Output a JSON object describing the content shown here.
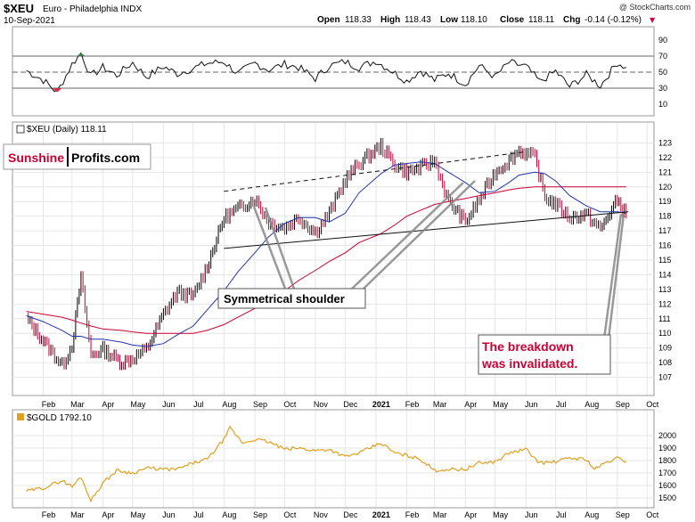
{
  "header": {
    "symbol": "$XEU",
    "name": "Euro - Philadelphia  INDX",
    "date": "10-Sep-2021",
    "credit": "@ StockCharts.com",
    "open_label": "Open",
    "open": "118.33",
    "high_label": "High",
    "high": "118.43",
    "low_label": "Low",
    "low": "118.10",
    "close_label": "Close",
    "close": "118.11",
    "chg_label": "Chg",
    "chg": "-0.14 (-0.12%)",
    "chg_arrow": "▼"
  },
  "logo": {
    "part1": "Sunshine",
    "part2": "Profits.com"
  },
  "annotations": {
    "shoulder": "Symmetrical shoulder",
    "breakdown_line1": "The breakdown",
    "breakdown_line2": "was invalidated."
  },
  "colors": {
    "price_up": "#000000",
    "price_down": "#cc0033",
    "ma_short": "#2233aa",
    "ma_long": "#cc0033",
    "gold_line": "#e0a020",
    "rsi_overbought_fill": "#3a7a3a",
    "rsi_oversold_fill": "#cc3344",
    "annotation_red": "#cc0033",
    "grid": "#e6e6e6"
  },
  "chart_data": [
    {
      "type": "line",
      "name": "rsi",
      "title": "",
      "ylim": [
        0,
        100
      ],
      "y_ticks": [
        "90",
        "70",
        "50",
        "30",
        "10"
      ],
      "reference_lines": [
        70,
        50,
        30
      ],
      "x": [
        "2020-01-15",
        "2020-02-01",
        "2020-02-15",
        "2020-03-01",
        "2020-03-10",
        "2020-03-20",
        "2020-04-01",
        "2020-04-15",
        "2020-05-01",
        "2020-05-15",
        "2020-06-01",
        "2020-06-15",
        "2020-07-01",
        "2020-07-15",
        "2020-08-01",
        "2020-08-15",
        "2020-09-01",
        "2020-09-15",
        "2020-10-01",
        "2020-10-15",
        "2020-11-01",
        "2020-11-15",
        "2020-12-01",
        "2020-12-15",
        "2021-01-01",
        "2021-01-15",
        "2021-02-01",
        "2021-02-15",
        "2021-03-01",
        "2021-03-15",
        "2021-04-01",
        "2021-04-15",
        "2021-05-01",
        "2021-05-15",
        "2021-06-01",
        "2021-06-15",
        "2021-07-01",
        "2021-07-15",
        "2021-08-01",
        "2021-08-15",
        "2021-09-01",
        "2021-09-10"
      ],
      "values": [
        52,
        40,
        25,
        60,
        74,
        45,
        56,
        46,
        62,
        44,
        57,
        48,
        55,
        61,
        63,
        48,
        61,
        53,
        60,
        56,
        42,
        58,
        63,
        56,
        64,
        53,
        39,
        52,
        40,
        49,
        35,
        58,
        44,
        62,
        57,
        38,
        51,
        32,
        47,
        33,
        62,
        56
      ]
    },
    {
      "type": "line",
      "name": "$XEU",
      "title": "$XEU (Daily) 118.11",
      "ylim": [
        106,
        124
      ],
      "y_ticks": [
        "123",
        "122",
        "121",
        "120",
        "119",
        "118",
        "117",
        "116",
        "115",
        "114",
        "113",
        "112",
        "111",
        "110",
        "109",
        "108",
        "107"
      ],
      "x_ticks": [
        "Feb",
        "Mar",
        "Apr",
        "May",
        "Jun",
        "Jul",
        "Aug",
        "Sep",
        "Oct",
        "Nov",
        "Dec",
        "2021",
        "Feb",
        "Mar",
        "Apr",
        "May",
        "Jun",
        "Jul",
        "Aug",
        "Sep",
        "Oct"
      ],
      "x": [
        "2020-01-15",
        "2020-02-01",
        "2020-02-20",
        "2020-03-01",
        "2020-03-10",
        "2020-03-20",
        "2020-04-01",
        "2020-04-20",
        "2020-05-01",
        "2020-05-15",
        "2020-06-01",
        "2020-06-15",
        "2020-07-01",
        "2020-07-15",
        "2020-08-01",
        "2020-08-15",
        "2020-09-01",
        "2020-09-15",
        "2020-10-01",
        "2020-10-15",
        "2020-11-01",
        "2020-11-15",
        "2020-12-01",
        "2020-12-15",
        "2021-01-06",
        "2021-01-20",
        "2021-02-01",
        "2021-02-15",
        "2021-03-01",
        "2021-03-15",
        "2021-04-01",
        "2021-04-15",
        "2021-05-01",
        "2021-05-15",
        "2021-05-25",
        "2021-06-10",
        "2021-06-20",
        "2021-07-01",
        "2021-07-15",
        "2021-08-01",
        "2021-08-15",
        "2021-09-01",
        "2021-09-10"
      ],
      "values": [
        111.0,
        109.5,
        107.8,
        109.2,
        113.8,
        108.5,
        108.9,
        108.0,
        108.3,
        108.9,
        111.3,
        112.8,
        112.5,
        114.6,
        117.9,
        118.5,
        119.2,
        117.6,
        117.2,
        117.9,
        116.9,
        118.2,
        120.5,
        121.6,
        122.8,
        121.5,
        121.0,
        121.3,
        121.8,
        119.0,
        117.6,
        119.1,
        121.0,
        121.8,
        122.5,
        122.0,
        119.3,
        118.8,
        117.9,
        118.1,
        117.1,
        119.1,
        118.1
      ],
      "ma_short": [
        111.2,
        110.8,
        110.2,
        109.8,
        109.8,
        109.6,
        109.6,
        109.4,
        109.2,
        109.1,
        109.3,
        109.9,
        110.5,
        111.6,
        112.9,
        114.2,
        115.5,
        116.6,
        117.5,
        117.9,
        117.9,
        117.6,
        118.2,
        119.6,
        120.9,
        121.5,
        121.6,
        121.7,
        121.6,
        121.0,
        120.3,
        119.6,
        119.7,
        120.3,
        120.8,
        121.0,
        120.9,
        120.4,
        119.4,
        118.7,
        118.3,
        118.3,
        118.2
      ],
      "ma_long": [
        111.5,
        111.3,
        111.1,
        110.9,
        110.7,
        110.5,
        110.3,
        110.2,
        110.1,
        110.0,
        110.0,
        110.0,
        110.0,
        110.2,
        110.6,
        111.1,
        111.7,
        112.3,
        112.9,
        113.6,
        114.3,
        114.9,
        115.5,
        116.2,
        116.8,
        117.4,
        118.0,
        118.4,
        118.8,
        119.0,
        119.2,
        119.4,
        119.6,
        119.8,
        119.9,
        120.0,
        120.0,
        120.0,
        120.0,
        120.0,
        120.0,
        120.0,
        120.0
      ],
      "trendlines": [
        {
          "x": [
            "2020-08-01",
            "2021-06-01"
          ],
          "y": [
            119.7,
            122.4
          ],
          "style": "dashed"
        },
        {
          "x": [
            "2020-08-01",
            "2021-09-12"
          ],
          "y": [
            115.8,
            118.3
          ],
          "style": "solid"
        }
      ]
    },
    {
      "type": "line",
      "name": "$GOLD",
      "title": "$GOLD 1792.10",
      "ylim": [
        1450,
        2150
      ],
      "y_ticks": [
        "2000",
        "1900",
        "1800",
        "1700",
        "1600",
        "1500"
      ],
      "x_ticks": [
        "Feb",
        "Mar",
        "Apr",
        "May",
        "Jun",
        "Jul",
        "Aug",
        "Sep",
        "Oct",
        "Nov",
        "Dec",
        "2021",
        "Feb",
        "Mar",
        "Apr",
        "May",
        "Jun",
        "Jul",
        "Aug",
        "Sep",
        "Oct"
      ],
      "x": [
        "2020-01-15",
        "2020-02-01",
        "2020-02-20",
        "2020-03-01",
        "2020-03-10",
        "2020-03-20",
        "2020-04-01",
        "2020-04-15",
        "2020-05-01",
        "2020-05-15",
        "2020-06-01",
        "2020-06-15",
        "2020-07-01",
        "2020-07-15",
        "2020-08-01",
        "2020-08-07",
        "2020-08-20",
        "2020-09-01",
        "2020-09-15",
        "2020-10-01",
        "2020-10-15",
        "2020-11-01",
        "2020-11-15",
        "2020-12-01",
        "2020-12-15",
        "2021-01-06",
        "2021-01-20",
        "2021-02-01",
        "2021-02-15",
        "2021-03-01",
        "2021-03-15",
        "2021-04-01",
        "2021-04-15",
        "2021-05-01",
        "2021-05-15",
        "2021-06-01",
        "2021-06-15",
        "2021-07-01",
        "2021-07-15",
        "2021-08-01",
        "2021-08-09",
        "2021-08-20",
        "2021-09-01",
        "2021-09-10"
      ],
      "values": [
        1555,
        1580,
        1640,
        1590,
        1670,
        1480,
        1620,
        1720,
        1700,
        1740,
        1730,
        1730,
        1780,
        1810,
        1970,
        2060,
        1940,
        1970,
        1950,
        1890,
        1900,
        1880,
        1890,
        1830,
        1860,
        1940,
        1860,
        1840,
        1810,
        1720,
        1730,
        1730,
        1780,
        1790,
        1860,
        1890,
        1780,
        1790,
        1820,
        1810,
        1730,
        1780,
        1820,
        1792
      ]
    }
  ]
}
